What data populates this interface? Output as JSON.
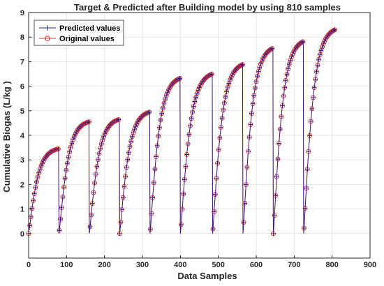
{
  "chart_data": {
    "type": "line",
    "title": "Target & Predicted after Building model by using 810 samples",
    "xlabel": "Data Samples",
    "ylabel": "Cumulative Biogas (L/kg )",
    "xlim": [
      0,
      900
    ],
    "ylim": [
      -1,
      9
    ],
    "xticks": [
      0,
      100,
      200,
      300,
      400,
      500,
      600,
      700,
      800,
      900
    ],
    "yticks": [
      0,
      1,
      2,
      3,
      4,
      5,
      6,
      7,
      8,
      9
    ],
    "grid": true,
    "legend_position": "top-left",
    "segments": [
      {
        "x_start": 0,
        "x_end": 80,
        "y_start": 0.0,
        "y_end": 3.45
      },
      {
        "x_start": 80,
        "x_end": 160,
        "y_start": 0.0,
        "y_end": 4.55
      },
      {
        "x_start": 160,
        "x_end": 240,
        "y_start": 0.0,
        "y_end": 4.65
      },
      {
        "x_start": 240,
        "x_end": 320,
        "y_start": 0.0,
        "y_end": 4.95
      },
      {
        "x_start": 320,
        "x_end": 400,
        "y_start": 0.0,
        "y_end": 6.32
      },
      {
        "x_start": 400,
        "x_end": 485,
        "y_start": 0.0,
        "y_end": 6.5
      },
      {
        "x_start": 485,
        "x_end": 565,
        "y_start": 0.0,
        "y_end": 6.88
      },
      {
        "x_start": 565,
        "x_end": 645,
        "y_start": 0.0,
        "y_end": 7.55
      },
      {
        "x_start": 645,
        "x_end": 725,
        "y_start": 0.0,
        "y_end": 7.82
      },
      {
        "x_start": 725,
        "x_end": 808,
        "y_start": 0.0,
        "y_end": 8.3
      }
    ],
    "series": [
      {
        "name": "Predicted values",
        "color": "#1a1a8c",
        "marker": "plus"
      },
      {
        "name": "Original values",
        "color": "#e03030",
        "marker": "circle"
      }
    ]
  }
}
